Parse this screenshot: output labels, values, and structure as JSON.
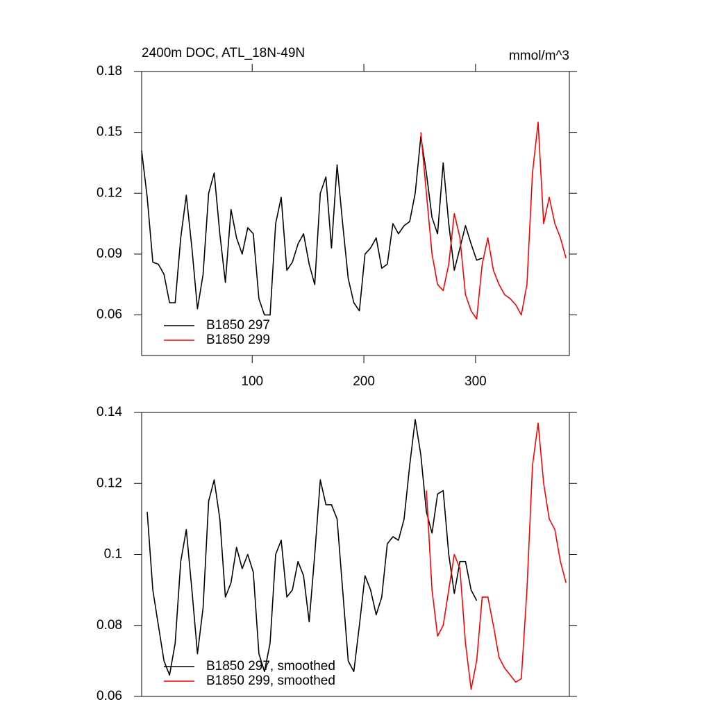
{
  "chart_data": [
    {
      "type": "line",
      "title": "2400m DOC, ATL_18N-49N",
      "units": "mmol/m^3",
      "x": [
        1,
        6,
        11,
        16,
        21,
        26,
        31,
        36,
        41,
        46,
        51,
        56,
        61,
        66,
        71,
        76,
        81,
        86,
        91,
        96,
        101,
        106,
        111,
        116,
        121,
        126,
        131,
        136,
        141,
        146,
        151,
        156,
        161,
        166,
        171,
        176,
        181,
        186,
        191,
        196,
        201,
        206,
        211,
        216,
        221,
        226,
        231,
        236,
        241,
        246,
        251,
        256,
        261,
        266,
        271,
        276,
        281,
        286,
        291,
        296,
        301,
        306,
        311,
        316,
        321,
        326,
        331,
        336,
        341,
        346,
        351,
        356,
        361,
        366,
        371,
        376,
        381
      ],
      "xlim": [
        1,
        384
      ],
      "xticks": [
        100,
        200,
        300
      ],
      "ylim": [
        0.04,
        0.18
      ],
      "yticks": [
        0.06,
        0.09,
        0.12,
        0.15,
        0.18
      ],
      "legend": "lower left",
      "series": [
        {
          "name": "B1850 297",
          "color": "#000000",
          "values": [
            0.141,
            0.118,
            0.086,
            0.085,
            0.08,
            0.066,
            0.066,
            0.098,
            0.119,
            0.093,
            0.063,
            0.08,
            0.12,
            0.13,
            0.1,
            0.076,
            0.112,
            0.098,
            0.09,
            0.103,
            0.1,
            0.068,
            0.06,
            0.06,
            0.105,
            0.118,
            0.082,
            0.086,
            0.095,
            0.1,
            0.085,
            0.075,
            0.12,
            0.128,
            0.093,
            0.134,
            0.105,
            0.078,
            0.066,
            0.062,
            0.09,
            0.093,
            0.098,
            0.083,
            0.085,
            0.105,
            0.1,
            0.104,
            0.106,
            0.12,
            0.148,
            0.13,
            0.108,
            0.1,
            0.135,
            0.105,
            0.082,
            0.093,
            0.104,
            0.095,
            0.087,
            0.088,
            null,
            null,
            null,
            null,
            null,
            null,
            null,
            null,
            null,
            null,
            null,
            null,
            null,
            null,
            null
          ]
        },
        {
          "name": "B1850 299",
          "color": "#ff0000",
          "values": [
            null,
            null,
            null,
            null,
            null,
            null,
            null,
            null,
            null,
            null,
            null,
            null,
            null,
            null,
            null,
            null,
            null,
            null,
            null,
            null,
            null,
            null,
            null,
            null,
            null,
            null,
            null,
            null,
            null,
            null,
            null,
            null,
            null,
            null,
            null,
            null,
            null,
            null,
            null,
            null,
            null,
            null,
            null,
            null,
            null,
            null,
            null,
            null,
            null,
            null,
            0.15,
            0.12,
            0.09,
            0.075,
            0.072,
            0.085,
            0.11,
            0.098,
            0.07,
            0.062,
            0.058,
            0.085,
            0.098,
            0.082,
            0.075,
            0.07,
            0.068,
            0.065,
            0.06,
            0.075,
            0.13,
            0.155,
            0.105,
            0.118,
            0.105,
            0.098,
            0.088
          ]
        }
      ]
    },
    {
      "type": "line",
      "x": [
        1,
        6,
        11,
        16,
        21,
        26,
        31,
        36,
        41,
        46,
        51,
        56,
        61,
        66,
        71,
        76,
        81,
        86,
        91,
        96,
        101,
        106,
        111,
        116,
        121,
        126,
        131,
        136,
        141,
        146,
        151,
        156,
        161,
        166,
        171,
        176,
        181,
        186,
        191,
        196,
        201,
        206,
        211,
        216,
        221,
        226,
        231,
        236,
        241,
        246,
        251,
        256,
        261,
        266,
        271,
        276,
        281,
        286,
        291,
        296,
        301,
        306,
        311,
        316,
        321,
        326,
        331,
        336,
        341,
        346,
        351,
        356,
        361,
        366,
        371,
        376,
        381
      ],
      "xlim": [
        1,
        384
      ],
      "ylim": [
        0.06,
        0.14
      ],
      "yticks": [
        0.06,
        0.08,
        0.1,
        0.12,
        0.14
      ],
      "legend": "lower left",
      "series": [
        {
          "name": "B1850 297, smoothed",
          "color": "#000000",
          "values": [
            null,
            0.112,
            0.09,
            0.08,
            0.07,
            0.066,
            0.075,
            0.098,
            0.107,
            0.09,
            0.072,
            0.085,
            0.115,
            0.121,
            0.11,
            0.088,
            0.092,
            0.102,
            0.096,
            0.1,
            0.095,
            0.072,
            0.067,
            0.075,
            0.1,
            0.104,
            0.088,
            0.09,
            0.098,
            0.094,
            0.081,
            0.1,
            0.121,
            0.114,
            0.114,
            0.11,
            0.09,
            0.07,
            0.067,
            0.08,
            0.094,
            0.09,
            0.083,
            0.088,
            0.103,
            0.105,
            0.104,
            0.11,
            0.125,
            0.138,
            0.128,
            0.112,
            0.106,
            0.117,
            0.118,
            0.1,
            0.089,
            0.098,
            0.098,
            0.09,
            0.087,
            null,
            null,
            null,
            null,
            null,
            null,
            null,
            null,
            null,
            null,
            null,
            null,
            null,
            null,
            null,
            null
          ]
        },
        {
          "name": "B1850 299, smoothed",
          "color": "#ff0000",
          "values": [
            null,
            null,
            null,
            null,
            null,
            null,
            null,
            null,
            null,
            null,
            null,
            null,
            null,
            null,
            null,
            null,
            null,
            null,
            null,
            null,
            null,
            null,
            null,
            null,
            null,
            null,
            null,
            null,
            null,
            null,
            null,
            null,
            null,
            null,
            null,
            null,
            null,
            null,
            null,
            null,
            null,
            null,
            null,
            null,
            null,
            null,
            null,
            null,
            null,
            null,
            null,
            0.118,
            0.09,
            0.077,
            0.08,
            0.09,
            0.1,
            0.096,
            0.075,
            0.062,
            0.07,
            0.088,
            0.088,
            0.08,
            0.071,
            0.068,
            0.066,
            0.064,
            0.065,
            0.09,
            0.125,
            0.137,
            0.12,
            0.11,
            0.107,
            0.098,
            0.092
          ]
        }
      ]
    }
  ]
}
